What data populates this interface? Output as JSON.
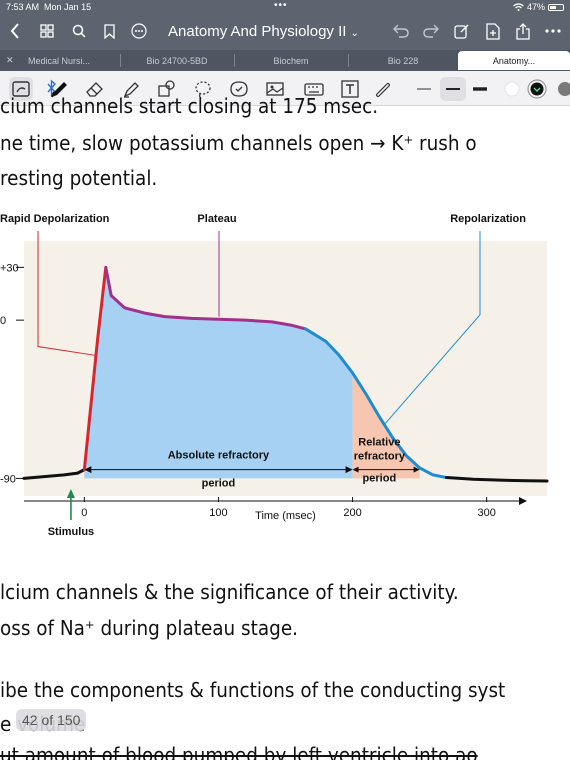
{
  "status": {
    "time": "7:53 AM",
    "date": "Mon Jan 15",
    "dots": "•••",
    "battery": "47%",
    "battery_level": 0.47
  },
  "nav": {
    "title": "Anatomy And Physiology II",
    "caret": "⌄"
  },
  "tabs": [
    {
      "label": "Medical Nursi..."
    },
    {
      "label": "Bio 24700-5BD"
    },
    {
      "label": "Biochem"
    },
    {
      "label": "Bio 228"
    },
    {
      "label": "Anatomy..."
    }
  ],
  "notes": {
    "line1": "cium channels start closing at 175 msec.",
    "line2": "ne time, slow potassium channels open → K⁺ rush o",
    "line3": " resting potential.",
    "line4": "lcium channels & the significance of their activity.",
    "line5": "oss of Na⁺ during plateau stage.",
    "line6": "ibe the components & functions of the conducting syst",
    "line7": "        e volume",
    "line8": "ut amount of blood pumped by left ventricle into ao"
  },
  "page_counter": "42 of 150",
  "chart_data": {
    "type": "line",
    "labels": {
      "rapid": "Rapid Depolarization",
      "plateau": "Plateau",
      "repol": "Repolarization",
      "absolute_1": "Absolute refractory",
      "absolute_2": "period",
      "relative_1": "Relative",
      "relative_2": "refractory",
      "relative_3": "period",
      "xlabel": "Time (msec)",
      "stimulus": "Stimulus"
    },
    "x_ticks": [
      "0",
      "100",
      "200",
      "300"
    ],
    "x_tick_values": [
      0,
      100,
      200,
      300
    ],
    "y_ticks": [
      "+30",
      "0",
      "-90"
    ],
    "y_tick_values": [
      30,
      0,
      -90
    ],
    "xlim": [
      -45,
      345
    ],
    "ylim": [
      -100,
      45
    ],
    "series": [
      {
        "segment": "baseline",
        "color": "#111111",
        "x": [
          -45,
          -30,
          -15,
          -5,
          0
        ],
        "y": [
          -90,
          -89,
          -88,
          -87,
          -85
        ]
      },
      {
        "segment": "depolarization",
        "color": "#d8262e",
        "x": [
          0,
          10,
          16
        ],
        "y": [
          -85,
          -10,
          30
        ]
      },
      {
        "segment": "plateau",
        "color": "#a0318c",
        "x": [
          16,
          20,
          30,
          45,
          60,
          80,
          100,
          120,
          140,
          155,
          165
        ],
        "y": [
          30,
          14,
          7,
          4,
          2,
          1,
          0.5,
          0,
          -1,
          -3,
          -5
        ]
      },
      {
        "segment": "repolarization",
        "color": "#1f8bd0",
        "x": [
          165,
          180,
          190,
          200,
          210,
          220,
          230,
          240,
          250,
          260,
          270
        ],
        "y": [
          -5,
          -12,
          -20,
          -30,
          -42,
          -55,
          -67,
          -77,
          -84,
          -88,
          -89.5
        ]
      },
      {
        "segment": "resting",
        "color": "#111111",
        "x": [
          270,
          290,
          310,
          330,
          345
        ],
        "y": [
          -89.5,
          -90.5,
          -91,
          -91.3,
          -91.5
        ]
      }
    ],
    "absolute_refractory": [
      0,
      200
    ],
    "relative_refractory": [
      200,
      250
    ],
    "colors": {
      "background": "#f5f1e8",
      "absolute_fill": "#a6d1f2",
      "relative_fill": "#f7c6b0",
      "stimulus_arrow": "#1f8a4c"
    }
  }
}
